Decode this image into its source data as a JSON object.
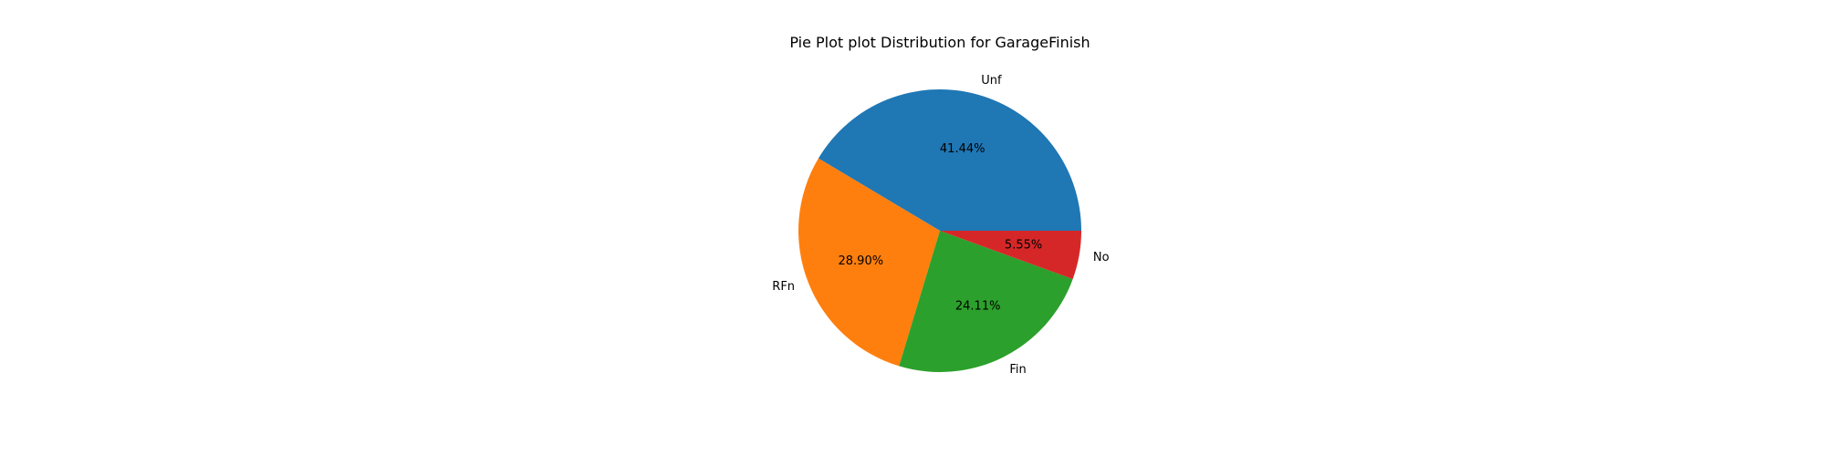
{
  "chart_data": {
    "type": "pie",
    "title": "Pie Plot plot Distribution for GarageFinish",
    "categories": [
      "Unf",
      "RFn",
      "Fin",
      "No"
    ],
    "values": [
      41.44,
      28.9,
      24.11,
      5.55
    ],
    "percent_labels": [
      "41.44%",
      "28.90%",
      "24.11%",
      "5.55%"
    ],
    "colors": [
      "#1f77b4",
      "#ff7f0e",
      "#2ca02c",
      "#d62728"
    ],
    "start_angle_deg": 0,
    "direction": "counterclockwise",
    "legend": "none"
  }
}
